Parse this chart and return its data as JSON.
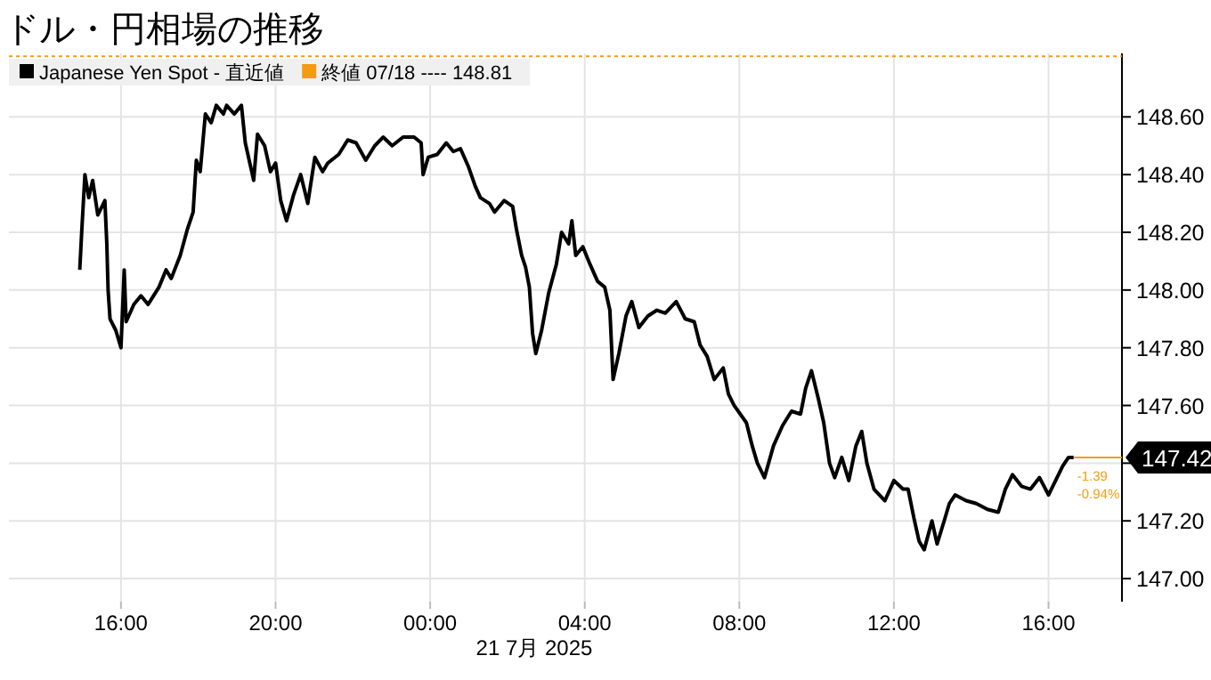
{
  "chart_data": {
    "type": "line",
    "title": "ドル・円相場の推移",
    "xlabel": "21 7月 2025",
    "x": [
      "2025-07-20T14:56",
      "2025-07-20T14:59",
      "2025-07-20T15:04",
      "2025-07-20T15:10",
      "2025-07-20T15:16",
      "2025-07-20T15:24",
      "2025-07-20T15:35",
      "2025-07-20T15:38",
      "2025-07-20T15:40",
      "2025-07-20T15:43",
      "2025-07-20T15:52",
      "2025-07-20T16:00",
      "2025-07-20T16:05",
      "2025-07-20T16:08",
      "2025-07-20T16:20",
      "2025-07-20T16:31",
      "2025-07-20T16:42",
      "2025-07-20T16:59",
      "2025-07-20T17:10",
      "2025-07-20T17:18",
      "2025-07-20T17:32",
      "2025-07-20T17:43",
      "2025-07-20T17:52",
      "2025-07-20T17:57",
      "2025-07-20T18:03",
      "2025-07-20T18:11",
      "2025-07-20T18:20",
      "2025-07-20T18:28",
      "2025-07-20T18:39",
      "2025-07-20T18:44",
      "2025-07-20T18:56",
      "2025-07-20T19:07",
      "2025-07-20T19:13",
      "2025-07-20T19:21",
      "2025-07-20T19:26",
      "2025-07-20T19:32",
      "2025-07-20T19:43",
      "2025-07-20T19:52",
      "2025-07-20T20:00",
      "2025-07-20T20:08",
      "2025-07-20T20:17",
      "2025-07-20T20:28",
      "2025-07-20T20:39",
      "2025-07-20T20:50",
      "2025-07-20T21:01",
      "2025-07-20T21:13",
      "2025-07-20T21:21",
      "2025-07-20T21:38",
      "2025-07-20T21:52",
      "2025-07-20T22:05",
      "2025-07-20T22:20",
      "2025-07-20T22:34",
      "2025-07-20T22:47",
      "2025-07-20T23:01",
      "2025-07-20T23:18",
      "2025-07-20T23:35",
      "2025-07-20T23:46",
      "2025-07-20T23:49",
      "2025-07-20T23:57",
      "2025-07-21T00:11",
      "2025-07-21T00:25",
      "2025-07-21T00:36",
      "2025-07-21T00:47",
      "2025-07-21T00:59",
      "2025-07-21T01:10",
      "2025-07-21T01:18",
      "2025-07-21T01:32",
      "2025-07-21T01:40",
      "2025-07-21T01:55",
      "2025-07-21T02:08",
      "2025-07-21T02:14",
      "2025-07-21T02:22",
      "2025-07-21T02:28",
      "2025-07-21T02:34",
      "2025-07-21T02:39",
      "2025-07-21T02:44",
      "2025-07-21T02:53",
      "2025-07-21T03:04",
      "2025-07-21T03:16",
      "2025-07-21T03:24",
      "2025-07-21T03:35",
      "2025-07-21T03:40",
      "2025-07-21T03:46",
      "2025-07-21T03:57",
      "2025-07-21T04:08",
      "2025-07-21T04:20",
      "2025-07-21T04:31",
      "2025-07-21T04:39",
      "2025-07-21T04:44",
      "2025-07-21T04:53",
      "2025-07-21T05:04",
      "2025-07-21T05:13",
      "2025-07-21T05:24",
      "2025-07-21T05:38",
      "2025-07-21T05:52",
      "2025-07-21T06:05",
      "2025-07-21T06:22",
      "2025-07-21T06:36",
      "2025-07-21T06:50",
      "2025-07-21T06:59",
      "2025-07-21T07:10",
      "2025-07-21T07:21",
      "2025-07-21T07:35",
      "2025-07-21T07:43",
      "2025-07-21T07:52",
      "2025-07-21T08:11",
      "2025-07-21T08:20",
      "2025-07-21T08:28",
      "2025-07-21T08:39",
      "2025-07-21T08:53",
      "2025-07-21T09:07",
      "2025-07-21T09:21",
      "2025-07-21T09:35",
      "2025-07-21T09:43",
      "2025-07-21T09:52",
      "2025-07-21T10:03",
      "2025-07-21T10:11",
      "2025-07-21T10:20",
      "2025-07-21T10:28",
      "2025-07-21T10:39",
      "2025-07-21T10:50",
      "2025-07-21T11:01",
      "2025-07-21T11:10",
      "2025-07-21T11:18",
      "2025-07-21T11:29",
      "2025-07-21T11:46",
      "2025-07-21T12:00",
      "2025-07-21T12:14",
      "2025-07-21T12:22",
      "2025-07-21T12:31",
      "2025-07-21T12:39",
      "2025-07-21T12:47",
      "2025-07-21T12:59",
      "2025-07-21T13:07",
      "2025-07-21T13:18",
      "2025-07-21T13:26",
      "2025-07-21T13:35",
      "2025-07-21T13:52",
      "2025-07-21T14:08",
      "2025-07-21T14:25",
      "2025-07-21T14:42",
      "2025-07-21T14:53",
      "2025-07-21T15:04",
      "2025-07-21T15:18",
      "2025-07-21T15:32",
      "2025-07-21T15:46",
      "2025-07-21T16:00",
      "2025-07-21T16:11",
      "2025-07-21T16:22",
      "2025-07-21T16:31",
      "2025-07-21T16:39"
    ],
    "series": [
      {
        "name": "Japanese Yen Spot - 直近値",
        "color": "#000000",
        "values": [
          148.07,
          148.2,
          148.4,
          148.32,
          148.38,
          148.26,
          148.31,
          148.16,
          148.0,
          147.9,
          147.86,
          147.8,
          148.07,
          147.89,
          147.95,
          147.98,
          147.95,
          148.01,
          148.07,
          148.04,
          148.12,
          148.21,
          148.27,
          148.45,
          148.41,
          148.61,
          148.58,
          148.64,
          148.61,
          148.64,
          148.61,
          148.64,
          148.51,
          148.43,
          148.38,
          148.54,
          148.5,
          148.41,
          148.44,
          148.31,
          148.24,
          148.33,
          148.4,
          148.3,
          148.46,
          148.41,
          148.44,
          148.47,
          148.52,
          148.51,
          148.45,
          148.5,
          148.53,
          148.5,
          148.53,
          148.53,
          148.51,
          148.4,
          148.46,
          148.47,
          148.51,
          148.48,
          148.49,
          148.43,
          148.36,
          148.32,
          148.3,
          148.27,
          148.31,
          148.29,
          148.21,
          148.12,
          148.08,
          148.01,
          147.85,
          147.78,
          147.86,
          147.99,
          148.09,
          148.2,
          148.16,
          148.24,
          148.12,
          148.15,
          148.09,
          148.03,
          148.01,
          147.93,
          147.69,
          147.78,
          147.91,
          147.96,
          147.87,
          147.91,
          147.93,
          147.92,
          147.96,
          147.9,
          147.89,
          147.81,
          147.77,
          147.69,
          147.73,
          147.64,
          147.6,
          147.54,
          147.46,
          147.4,
          147.35,
          147.46,
          147.53,
          147.58,
          147.57,
          147.66,
          147.72,
          147.62,
          147.54,
          147.4,
          147.35,
          147.42,
          147.34,
          147.46,
          147.51,
          147.4,
          147.31,
          147.27,
          147.34,
          147.31,
          147.31,
          147.21,
          147.13,
          147.1,
          147.2,
          147.12,
          147.2,
          147.26,
          147.29,
          147.27,
          147.26,
          147.24,
          147.23,
          147.31,
          147.36,
          147.32,
          147.31,
          147.35,
          147.29,
          147.34,
          147.39,
          147.42,
          147.42
        ]
      }
    ],
    "xlim": [
      "2025-07-20T13:06",
      "2025-07-21T17:54"
    ],
    "xticks": [
      {
        "value": "2025-07-20T16:00",
        "label": "16:00"
      },
      {
        "value": "2025-07-20T20:00",
        "label": "20:00"
      },
      {
        "value": "2025-07-21T00:00",
        "label": "00:00"
      },
      {
        "value": "2025-07-21T04:00",
        "label": "04:00"
      },
      {
        "value": "2025-07-21T08:00",
        "label": "08:00"
      },
      {
        "value": "2025-07-21T12:00",
        "label": "12:00"
      },
      {
        "value": "2025-07-21T16:00",
        "label": "16:00"
      }
    ],
    "ylim": [
      146.92,
      148.82
    ],
    "yticks": [
      {
        "value": 147.0,
        "label": "147.00"
      },
      {
        "value": 147.2,
        "label": "147.20"
      },
      {
        "value": 147.4,
        "label": null
      },
      {
        "value": 147.6,
        "label": "147.60"
      },
      {
        "value": 147.8,
        "label": "147.80"
      },
      {
        "value": 148.0,
        "label": "148.00"
      },
      {
        "value": 148.2,
        "label": "148.20"
      },
      {
        "value": 148.4,
        "label": "148.40"
      },
      {
        "value": 148.6,
        "label": "148.60"
      }
    ],
    "ref_lines": [
      {
        "axis": "y",
        "value": 148.81,
        "label": "終値 07/18 ---- 148.81",
        "color": "#f39c12",
        "line_style": "dotted"
      }
    ],
    "annotations": [
      {
        "text": "147.42",
        "x": "2025-07-21T16:39",
        "y": 147.42
      },
      {
        "text": "-1.39",
        "x": "2025-07-21T16:39",
        "y": 147.42
      },
      {
        "text": "-0.94%",
        "x": "2025-07-21T16:39",
        "y": 147.42
      }
    ],
    "grid": true,
    "legend": "top left",
    "marker": "none",
    "line_style": "solid"
  }
}
